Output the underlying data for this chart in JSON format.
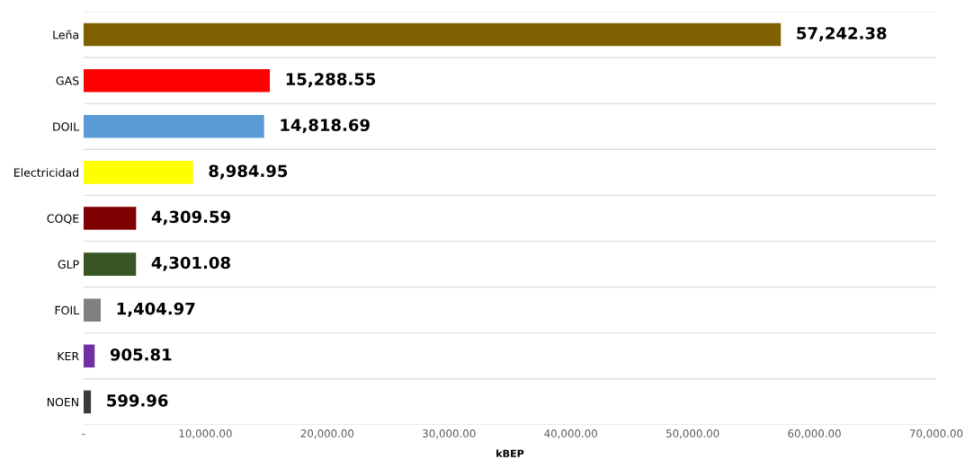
{
  "chart_data": {
    "type": "bar",
    "orientation": "horizontal",
    "xlabel": "kBEP",
    "categories": [
      "Leña",
      "GAS",
      "DOIL",
      "Electricidad",
      "COQE",
      "GLP",
      "FOIL",
      "KER",
      "NOEN"
    ],
    "values": [
      57242.38,
      15288.55,
      14818.69,
      8984.95,
      4309.59,
      4301.08,
      1404.97,
      905.81,
      599.96
    ],
    "colors": [
      "#7f6000",
      "#ff0000",
      "#5b9bd5",
      "#ffff00",
      "#7f0000",
      "#375623",
      "#808080",
      "#7030a0",
      "#3a3a3a"
    ],
    "xlim": [
      0,
      70000
    ],
    "xticks": [
      {
        "value": 0,
        "label": "-"
      },
      {
        "value": 10000,
        "label": "10,000.00"
      },
      {
        "value": 20000,
        "label": "20,000.00"
      },
      {
        "value": 30000,
        "label": "30,000.00"
      },
      {
        "value": 40000,
        "label": "40,000.00"
      },
      {
        "value": 50000,
        "label": "50,000.00"
      },
      {
        "value": 60000,
        "label": "60,000.00"
      },
      {
        "value": 70000,
        "label": "70,000.00"
      }
    ],
    "value_labels": [
      "57,242.38",
      "15,288.55",
      "14,818.69",
      "8,984.95",
      "4,309.59",
      "4,301.08",
      "1,404.97",
      "905.81",
      "599.96"
    ],
    "grid": "y",
    "legend": false
  }
}
